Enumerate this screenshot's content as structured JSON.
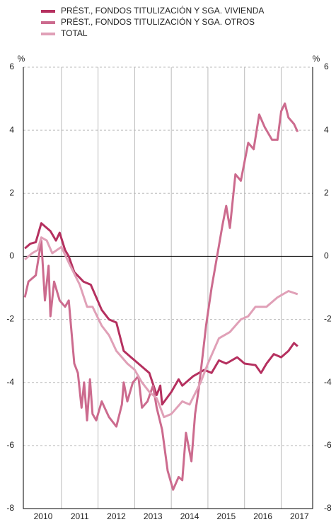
{
  "chart_data": {
    "type": "line",
    "y_unit": "%",
    "xlim": [
      2009.96,
      2017.86
    ],
    "ylim": [
      -8,
      6
    ],
    "yticks": [
      6,
      4,
      2,
      0,
      -2,
      -4,
      -6,
      -8
    ],
    "xticks": [
      {
        "value": 2010.5,
        "label": "2010"
      },
      {
        "value": 2011.5,
        "label": "2011"
      },
      {
        "value": 2012.5,
        "label": "2012"
      },
      {
        "value": 2013.5,
        "label": "2013"
      },
      {
        "value": 2014.5,
        "label": "2014"
      },
      {
        "value": 2015.5,
        "label": "2015"
      },
      {
        "value": 2016.5,
        "label": "2016"
      },
      {
        "value": 2017.5,
        "label": "2017"
      }
    ],
    "xgrid": [
      2011,
      2012,
      2013,
      2014,
      2015,
      2016,
      2017
    ],
    "grid": true,
    "series": [
      {
        "name": "PRÉST., FONDOS TITULIZACIÓN Y SGA. VIVIENDA",
        "color": "#b5305f",
        "x": [
          2010.0,
          2010.15,
          2010.3,
          2010.45,
          2010.6,
          2010.7,
          2010.85,
          2010.95,
          2011.1,
          2011.2,
          2011.35,
          2011.6,
          2011.8,
          2012.1,
          2012.3,
          2012.5,
          2012.7,
          2012.9,
          2013.2,
          2013.4,
          2013.6,
          2013.7,
          2013.75,
          2014.0,
          2014.2,
          2014.3,
          2014.6,
          2014.9,
          2015.1,
          2015.3,
          2015.5,
          2015.8,
          2016.0,
          2016.3,
          2016.45,
          2016.6,
          2016.8,
          2017.0,
          2017.2,
          2017.35,
          2017.45
        ],
        "values": [
          0.25,
          0.4,
          0.45,
          1.05,
          0.9,
          0.8,
          0.5,
          0.75,
          0.2,
          0.0,
          -0.5,
          -0.8,
          -0.9,
          -1.7,
          -2.0,
          -2.1,
          -3.0,
          -3.2,
          -3.5,
          -3.7,
          -4.4,
          -4.1,
          -4.7,
          -4.3,
          -3.9,
          -4.1,
          -3.8,
          -3.6,
          -3.7,
          -3.3,
          -3.4,
          -3.2,
          -3.4,
          -3.45,
          -3.7,
          -3.4,
          -3.1,
          -3.2,
          -3.0,
          -2.75,
          -2.85
        ]
      },
      {
        "name": "PRÉST., FONDOS TITULIZACIÓN Y SGA. OTROS",
        "color": "#cc6b8e",
        "x": [
          2010.0,
          2010.1,
          2010.3,
          2010.45,
          2010.55,
          2010.65,
          2010.7,
          2010.8,
          2010.95,
          2011.1,
          2011.2,
          2011.35,
          2011.45,
          2011.55,
          2011.62,
          2011.7,
          2011.78,
          2011.85,
          2011.95,
          2012.1,
          2012.3,
          2012.5,
          2012.65,
          2012.7,
          2012.8,
          2012.95,
          2013.1,
          2013.2,
          2013.35,
          2013.5,
          2013.6,
          2013.75,
          2013.9,
          2014.05,
          2014.2,
          2014.3,
          2014.4,
          2014.55,
          2014.65,
          2014.75,
          2014.85,
          2014.95,
          2015.1,
          2015.25,
          2015.4,
          2015.5,
          2015.6,
          2015.75,
          2015.9,
          2016.1,
          2016.25,
          2016.4,
          2016.55,
          2016.75,
          2016.9,
          2017.0,
          2017.1,
          2017.2,
          2017.35,
          2017.45
        ],
        "values": [
          -1.3,
          -0.8,
          -0.6,
          0.5,
          -1.4,
          -0.3,
          -1.9,
          -0.8,
          -1.4,
          -1.6,
          -1.4,
          -3.4,
          -3.7,
          -4.8,
          -4.0,
          -5.2,
          -3.9,
          -5.0,
          -5.2,
          -4.6,
          -5.1,
          -5.4,
          -4.7,
          -4.0,
          -4.6,
          -4.0,
          -3.8,
          -4.8,
          -4.6,
          -4.1,
          -4.8,
          -5.5,
          -6.8,
          -7.4,
          -7.0,
          -7.1,
          -5.6,
          -6.5,
          -5.0,
          -4.2,
          -3.2,
          -2.2,
          -1.0,
          0.0,
          1.0,
          1.6,
          0.9,
          2.6,
          2.4,
          3.6,
          3.4,
          4.5,
          4.1,
          3.7,
          3.7,
          4.6,
          4.85,
          4.4,
          4.2,
          3.95
        ]
      },
      {
        "name": "TOTAL",
        "color": "#e0a0b7",
        "x": [
          2010.0,
          2010.2,
          2010.35,
          2010.45,
          2010.6,
          2010.75,
          2011.0,
          2011.2,
          2011.5,
          2011.7,
          2011.85,
          2012.1,
          2012.3,
          2012.5,
          2012.8,
          2013.0,
          2013.2,
          2013.4,
          2013.6,
          2013.8,
          2014.0,
          2014.3,
          2014.5,
          2014.8,
          2015.0,
          2015.3,
          2015.6,
          2015.9,
          2016.1,
          2016.3,
          2016.6,
          2016.9,
          2017.2,
          2017.45
        ],
        "values": [
          -0.1,
          0.1,
          0.2,
          0.6,
          0.5,
          0.1,
          0.3,
          -0.2,
          -0.9,
          -1.6,
          -1.6,
          -2.2,
          -2.5,
          -3.0,
          -3.4,
          -3.6,
          -4.0,
          -4.3,
          -4.5,
          -5.1,
          -5.0,
          -4.6,
          -4.7,
          -4.0,
          -3.4,
          -2.6,
          -2.4,
          -2.0,
          -1.9,
          -1.6,
          -1.6,
          -1.3,
          -1.1,
          -1.2
        ]
      }
    ]
  }
}
